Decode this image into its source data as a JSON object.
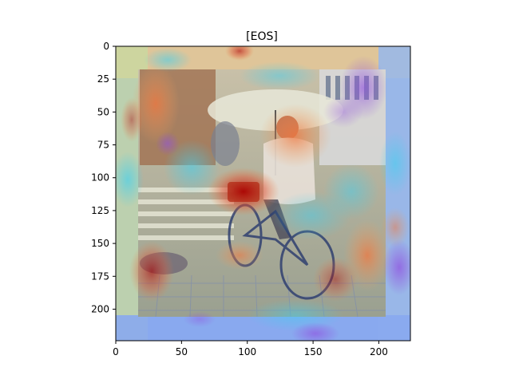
{
  "figure": {
    "title": "[EOS]",
    "colormap": "rainbow/jet heatmap overlay on photo",
    "image": {
      "description": "Heatmap (attention map) overlaid on a photo of a person riding a bicycle under an umbrella on a city street"
    }
  },
  "chart_data": {
    "type": "heatmap",
    "title": "[EOS]",
    "xlabel": "",
    "ylabel": "",
    "xlim": [
      0,
      224
    ],
    "ylim": [
      224,
      0
    ],
    "x_ticks": [
      "0",
      "50",
      "100",
      "150",
      "200"
    ],
    "y_ticks": [
      "0",
      "25",
      "50",
      "75",
      "100",
      "125",
      "150",
      "175",
      "200"
    ],
    "x_tick_values": [
      0,
      50,
      100,
      150,
      200
    ],
    "y_tick_values": [
      0,
      25,
      50,
      75,
      100,
      125,
      150,
      175,
      200
    ],
    "grid": false,
    "colors": {
      "hot": "#c81e1e",
      "warm": "#f0a060",
      "neutral": "#c8d8b0",
      "cool": "#60c8e8",
      "cold": "#8a70e0"
    }
  }
}
